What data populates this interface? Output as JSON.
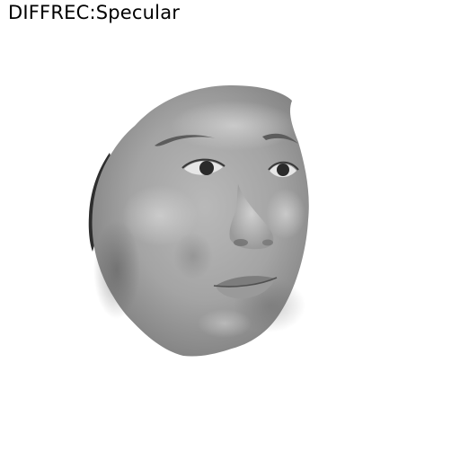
{
  "caption": "DIFFREC:Specular",
  "background_color": "#ffffff",
  "render": {
    "subject": "face-mesh",
    "shading": "grayscale"
  }
}
